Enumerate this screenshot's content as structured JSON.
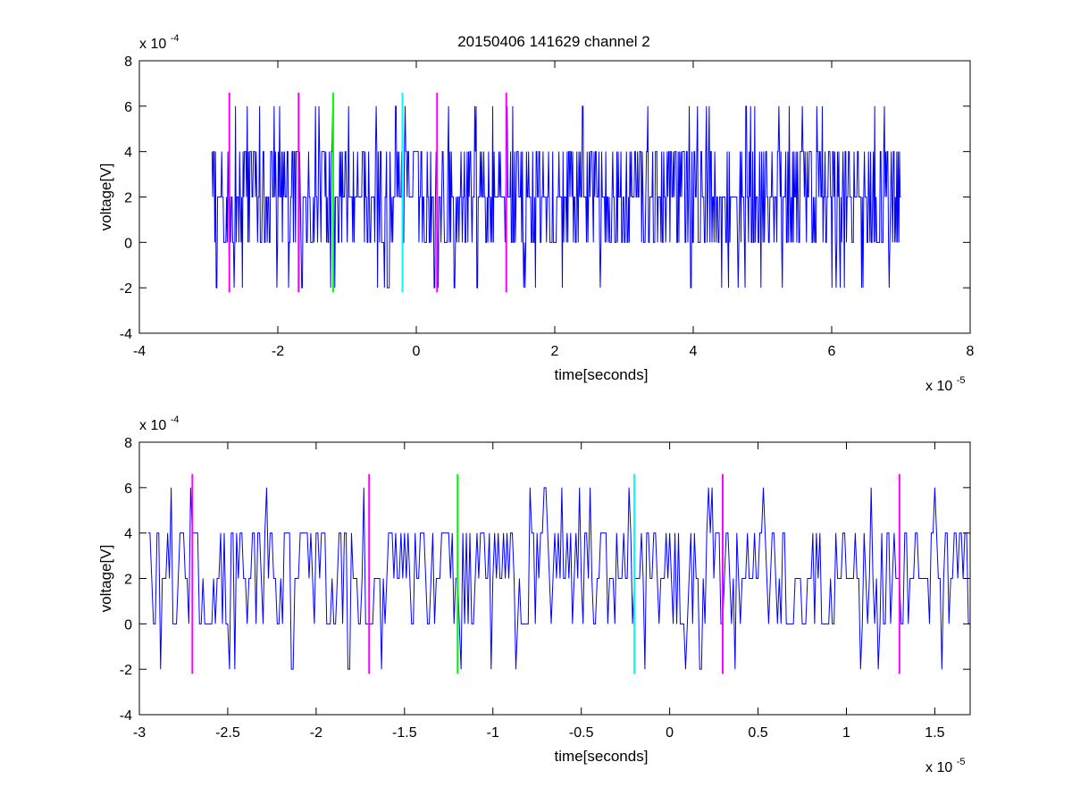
{
  "figure": {
    "title": "20150406 141629 channel 2"
  },
  "colors": {
    "signal": "#0000ff",
    "marker_magenta": "#ff00ff",
    "marker_green": "#00ff00",
    "marker_cyan": "#00ffff",
    "axes": "#000000",
    "background": "#ffffff"
  },
  "chart_data": [
    {
      "type": "line",
      "title": "20150406 141629 channel 2",
      "xlabel": "time[seconds]",
      "ylabel": "voltage[V]",
      "x_exponent_label": "x 10",
      "x_exponent": "-5",
      "y_exponent_label": "x 10",
      "y_exponent": "-4",
      "xlim": [
        -4,
        8
      ],
      "ylim": [
        -4,
        8
      ],
      "xticks": [
        -4,
        -2,
        0,
        2,
        4,
        6,
        8
      ],
      "xtick_labels": [
        "-4",
        "-2",
        "0",
        "2",
        "4",
        "6",
        "8"
      ],
      "yticks": [
        -4,
        -2,
        0,
        2,
        4,
        6,
        8
      ],
      "ytick_labels": [
        "-4",
        "-2",
        "0",
        "2",
        "4",
        "6",
        "8"
      ],
      "grid": false,
      "series": [
        {
          "color": "#0000ff",
          "x_range": [
            -2.95,
            7.0
          ],
          "levels": [
            -2,
            0,
            2,
            4,
            6
          ],
          "baseline": 2,
          "points": 1000
        }
      ],
      "markers": [
        {
          "x": -2.7,
          "color": "magenta"
        },
        {
          "x": -1.7,
          "color": "magenta"
        },
        {
          "x": -1.2,
          "color": "green"
        },
        {
          "x": -0.2,
          "color": "cyan"
        },
        {
          "x": 0.3,
          "color": "magenta"
        },
        {
          "x": 1.3,
          "color": "magenta"
        }
      ],
      "marker_y_range": [
        -2.2,
        6.6
      ]
    },
    {
      "type": "line",
      "title": "",
      "xlabel": "time[seconds]",
      "ylabel": "voltage[V]",
      "x_exponent_label": "x 10",
      "x_exponent": "-5",
      "y_exponent_label": "x 10",
      "y_exponent": "-4",
      "xlim": [
        -3.0,
        1.7
      ],
      "ylim": [
        -4,
        8
      ],
      "xticks": [
        -3,
        -2.5,
        -2,
        -1.5,
        -1,
        -0.5,
        0,
        0.5,
        1,
        1.5
      ],
      "xtick_labels": [
        "-3",
        "-2.5",
        "-2",
        "-1.5",
        "-1",
        "-0.5",
        "0",
        "0.5",
        "1",
        "1.5"
      ],
      "yticks": [
        -4,
        -2,
        0,
        2,
        4,
        6,
        8
      ],
      "ytick_labels": [
        "-4",
        "-2",
        "0",
        "2",
        "4",
        "6",
        "8"
      ],
      "grid": false,
      "series": [
        {
          "color": "#0000ff",
          "x_range": [
            -2.95,
            1.7
          ],
          "levels": [
            -2,
            0,
            2,
            4,
            6
          ],
          "baseline": 2,
          "points": 466
        }
      ],
      "markers": [
        {
          "x": -2.7,
          "color": "magenta"
        },
        {
          "x": -1.7,
          "color": "magenta"
        },
        {
          "x": -1.2,
          "color": "green"
        },
        {
          "x": -0.2,
          "color": "cyan"
        },
        {
          "x": 0.3,
          "color": "magenta"
        },
        {
          "x": 1.3,
          "color": "magenta"
        }
      ],
      "marker_y_range": [
        -2.2,
        6.6
      ]
    }
  ]
}
